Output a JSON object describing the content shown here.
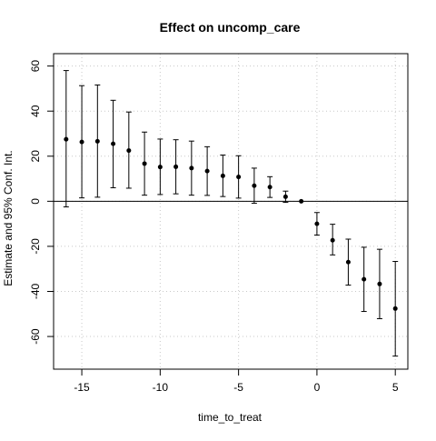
{
  "chart_data": {
    "type": "scatter",
    "title": "Effect on uncomp_care",
    "xlabel": "time_to_treat",
    "ylabel": "Estimate and 95% Conf. Int.",
    "xlim": [
      -16.8,
      5.8
    ],
    "ylim": [
      -74.5,
      65.5
    ],
    "x_ticks": [
      -15,
      -10,
      -5,
      0,
      5
    ],
    "y_ticks": [
      -60,
      -40,
      -20,
      0,
      20,
      40,
      60
    ],
    "grid": true,
    "reference_line_y": 0,
    "points": [
      {
        "x": -16,
        "estimate": 27.5,
        "lower": -2.5,
        "upper": 58
      },
      {
        "x": -15,
        "estimate": 26.3,
        "lower": 1.5,
        "upper": 51.3
      },
      {
        "x": -14,
        "estimate": 26.6,
        "lower": 1.8,
        "upper": 51.6
      },
      {
        "x": -13,
        "estimate": 25.5,
        "lower": 6,
        "upper": 44.8
      },
      {
        "x": -12,
        "estimate": 22.5,
        "lower": 5.8,
        "upper": 39.6
      },
      {
        "x": -11,
        "estimate": 16.7,
        "lower": 2.7,
        "upper": 30.7
      },
      {
        "x": -10,
        "estimate": 15.2,
        "lower": 3,
        "upper": 27.6
      },
      {
        "x": -9,
        "estimate": 15.3,
        "lower": 3.3,
        "upper": 27.3
      },
      {
        "x": -8,
        "estimate": 14.7,
        "lower": 2.7,
        "upper": 26.7
      },
      {
        "x": -7,
        "estimate": 13.4,
        "lower": 2.6,
        "upper": 24.2
      },
      {
        "x": -6,
        "estimate": 11.3,
        "lower": 2.1,
        "upper": 20.5
      },
      {
        "x": -5,
        "estimate": 10.8,
        "lower": 1.4,
        "upper": 20.2
      },
      {
        "x": -4,
        "estimate": 6.9,
        "lower": -0.9,
        "upper": 14.7
      },
      {
        "x": -3,
        "estimate": 6.3,
        "lower": 1.7,
        "upper": 10.9
      },
      {
        "x": -2,
        "estimate": 2,
        "lower": -0.5,
        "upper": 4.5
      },
      {
        "x": -1,
        "estimate": 0,
        "lower": 0,
        "upper": 0
      },
      {
        "x": 0,
        "estimate": -10,
        "lower": -15,
        "upper": -5
      },
      {
        "x": 1,
        "estimate": -17.3,
        "lower": -23.8,
        "upper": -10.2
      },
      {
        "x": 2,
        "estimate": -27,
        "lower": -37.2,
        "upper": -16.8
      },
      {
        "x": 3,
        "estimate": -34.6,
        "lower": -48.9,
        "upper": -20.4
      },
      {
        "x": 4,
        "estimate": -36.7,
        "lower": -52.1,
        "upper": -21.3
      },
      {
        "x": 5,
        "estimate": -47.6,
        "lower": -68.7,
        "upper": -26.7
      }
    ]
  }
}
